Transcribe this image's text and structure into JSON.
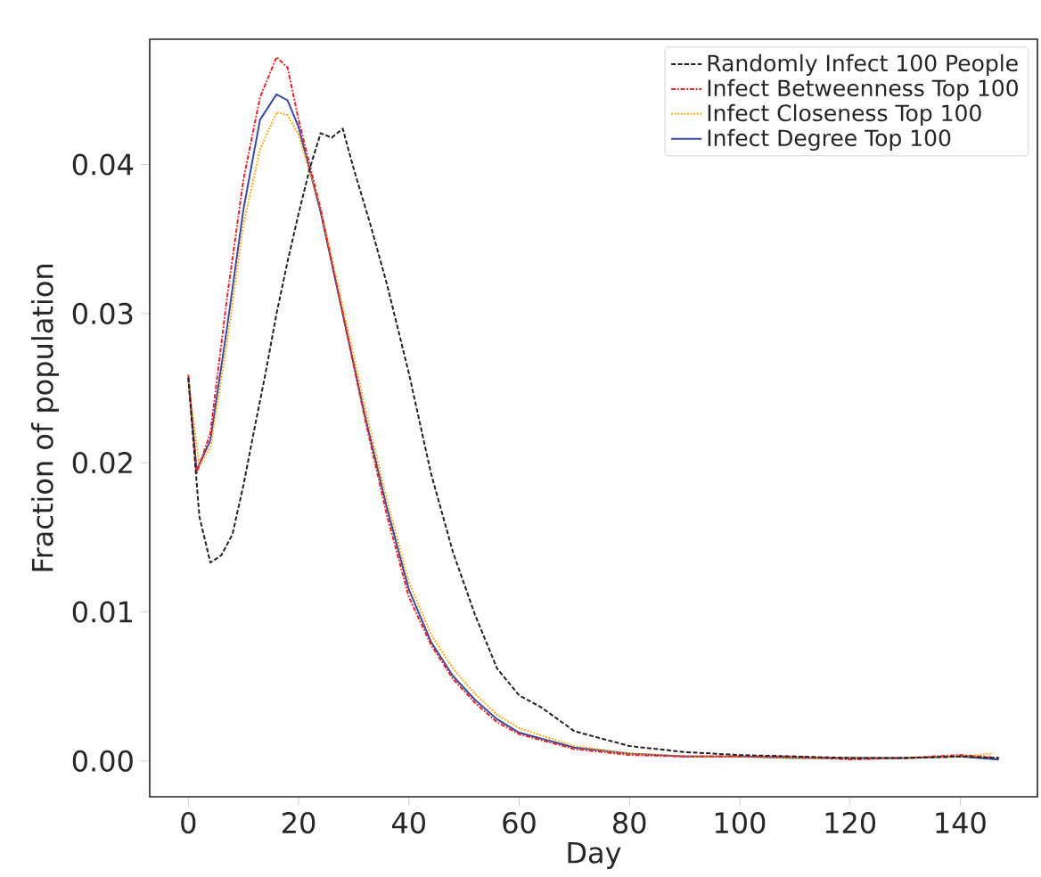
{
  "chart_data": {
    "type": "line",
    "xlabel": "Day",
    "ylabel": "Fraction of population",
    "xlim": [
      -7,
      154
    ],
    "ylim": [
      -0.0024,
      0.0484
    ],
    "xticks": [
      0,
      20,
      40,
      60,
      80,
      100,
      120,
      140
    ],
    "yticks": [
      {
        "value": 0,
        "label": "0.00"
      },
      {
        "value": 0.01,
        "label": "0.01"
      },
      {
        "value": 0.02,
        "label": "0.02"
      },
      {
        "value": 0.03,
        "label": "0.03"
      },
      {
        "value": 0.04,
        "label": "0.04"
      }
    ],
    "legend": "top right",
    "grid": false,
    "series": [
      {
        "name": "Randomly Infect 100 People",
        "color": "#222222",
        "line_style": "dashed",
        "x": [
          0,
          2,
          4,
          6,
          8,
          10,
          12,
          14,
          16,
          18,
          20,
          22,
          24,
          26,
          28,
          30,
          33,
          36,
          40,
          44,
          48,
          52,
          56,
          60,
          64,
          70,
          80,
          90,
          100,
          110,
          120,
          130,
          140,
          147
        ],
        "values": [
          0.0257,
          0.0164,
          0.0133,
          0.0138,
          0.0152,
          0.0185,
          0.0223,
          0.026,
          0.03,
          0.0335,
          0.0367,
          0.0397,
          0.0421,
          0.0418,
          0.0424,
          0.0397,
          0.036,
          0.032,
          0.026,
          0.0193,
          0.014,
          0.0098,
          0.0062,
          0.0044,
          0.0036,
          0.002,
          0.001,
          0.0006,
          0.0004,
          0.0003,
          0.0002,
          0.0002,
          0.0003,
          0.0002
        ]
      },
      {
        "name": "Infect Betweenness Top 100",
        "color": "#e8222a",
        "line_style": "dashdot",
        "x": [
          0,
          1.5,
          4,
          7,
          10,
          13,
          16,
          18,
          20,
          24,
          28,
          32,
          36,
          40,
          44,
          48,
          52,
          56,
          60,
          70,
          80,
          90,
          100,
          110,
          120,
          130,
          140,
          147
        ],
        "values": [
          0.0259,
          0.0193,
          0.022,
          0.031,
          0.039,
          0.0445,
          0.0472,
          0.0465,
          0.043,
          0.037,
          0.03,
          0.023,
          0.0165,
          0.011,
          0.0078,
          0.0055,
          0.0039,
          0.0026,
          0.0018,
          0.0008,
          0.0004,
          0.0003,
          0.0003,
          0.0003,
          0.0001,
          0.0002,
          0.0004,
          0.0002
        ]
      },
      {
        "name": "Infect Closeness Top 100",
        "color": "#ffa500",
        "line_style": "dotted",
        "x": [
          0,
          2,
          4,
          7,
          10,
          13,
          16,
          18,
          20,
          24,
          28,
          32,
          36,
          40,
          44,
          48,
          52,
          56,
          60,
          70,
          80,
          90,
          100,
          110,
          120,
          130,
          140,
          146
        ],
        "values": [
          0.0254,
          0.0198,
          0.021,
          0.028,
          0.036,
          0.041,
          0.0435,
          0.0433,
          0.042,
          0.037,
          0.0305,
          0.0238,
          0.0175,
          0.012,
          0.0085,
          0.0062,
          0.0045,
          0.0031,
          0.0022,
          0.001,
          0.0005,
          0.0003,
          0.0003,
          0.0002,
          0.0002,
          0.0002,
          0.0003,
          0.0005
        ]
      },
      {
        "name": "Infect Degree Top 100",
        "color": "#3a4ba0",
        "line_style": "solid",
        "x": [
          0,
          1.5,
          4,
          7,
          10,
          13,
          16,
          18,
          20,
          24,
          28,
          32,
          36,
          40,
          44,
          48,
          52,
          56,
          60,
          70,
          80,
          90,
          100,
          110,
          120,
          130,
          140,
          147
        ],
        "values": [
          0.0257,
          0.0195,
          0.0215,
          0.029,
          0.037,
          0.043,
          0.0447,
          0.0443,
          0.0425,
          0.0368,
          0.03,
          0.0232,
          0.017,
          0.0115,
          0.008,
          0.0057,
          0.0041,
          0.0028,
          0.0019,
          0.0009,
          0.0005,
          0.0003,
          0.0003,
          0.0002,
          0.0002,
          0.0002,
          0.0003,
          0.0001
        ]
      }
    ]
  }
}
